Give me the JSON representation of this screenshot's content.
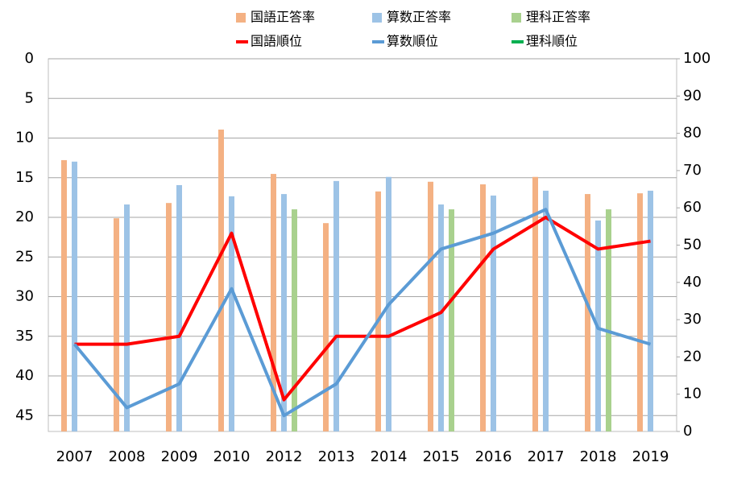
{
  "chart_data": {
    "type": "combo",
    "categories": [
      "2007",
      "2008",
      "2009",
      "2010",
      "2012",
      "2013",
      "2014",
      "2015",
      "2016",
      "2017",
      "2018",
      "2019"
    ],
    "ylim": [
      0,
      47
    ],
    "yticks": [
      0,
      5,
      10,
      15,
      20,
      25,
      30,
      35,
      40,
      45
    ],
    "y_inverted": true,
    "y2lim": [
      0,
      100
    ],
    "y2ticks": [
      0,
      10,
      20,
      30,
      40,
      50,
      60,
      70,
      80,
      90,
      100
    ],
    "grid": true,
    "series": [
      {
        "name": "国語正答率",
        "type": "bar",
        "axis": "y2",
        "color": "#f4b183",
        "values": [
          72.8,
          57.2,
          61.3,
          81,
          69.1,
          55.9,
          64.4,
          67,
          66.3,
          68.3,
          63.7,
          63.9
        ]
      },
      {
        "name": "算数正答率",
        "type": "bar",
        "axis": "y2",
        "color": "#9dc3e6",
        "values": [
          72.4,
          60.9,
          66.1,
          63.1,
          63.7,
          67.2,
          68.3,
          60.9,
          63.3,
          64.6,
          56.6,
          64.6
        ]
      },
      {
        "name": "理科正答率",
        "type": "bar",
        "axis": "y2",
        "color": "#a9d18e",
        "values": [
          null,
          null,
          null,
          null,
          59.6,
          null,
          null,
          59.6,
          null,
          null,
          59.6,
          null
        ]
      },
      {
        "name": "国語順位",
        "type": "line",
        "axis": "y",
        "color": "#ff0000",
        "values": [
          36,
          36,
          35,
          22,
          43,
          35,
          35,
          32,
          24,
          20,
          24,
          23
        ]
      },
      {
        "name": "算数順位",
        "type": "line",
        "axis": "y",
        "color": "#5b9bd5",
        "values": [
          36,
          44,
          41,
          29,
          45,
          41,
          31,
          24,
          22,
          19,
          34,
          36
        ]
      },
      {
        "name": "理科順位",
        "type": "line",
        "axis": "y",
        "color": "#00b050",
        "values": [
          null,
          null,
          null,
          null,
          null,
          null,
          null,
          null,
          null,
          null,
          null,
          null
        ]
      }
    ]
  }
}
